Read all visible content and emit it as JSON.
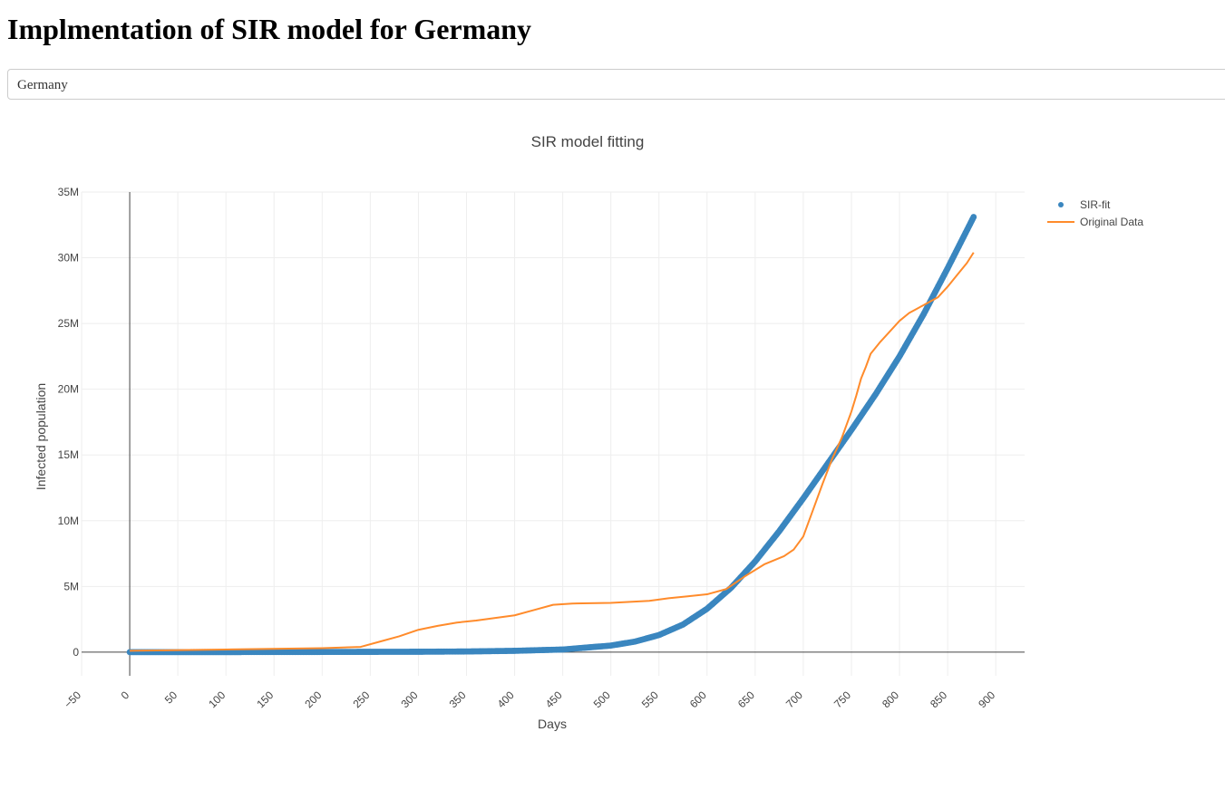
{
  "page": {
    "title": "Implmentation of SIR model for Germany"
  },
  "country_select": {
    "value": "Germany"
  },
  "chart_data": {
    "type": "line",
    "title": "SIR model fitting",
    "xlabel": "Days",
    "ylabel": "Infected population",
    "xlim": [
      -50,
      930
    ],
    "ylim": [
      -1800000,
      35000000
    ],
    "x_ticks": [
      -50,
      0,
      50,
      100,
      150,
      200,
      250,
      300,
      350,
      400,
      450,
      500,
      550,
      600,
      650,
      700,
      750,
      800,
      850,
      900
    ],
    "x_tick_labels": [
      "−50",
      "0",
      "50",
      "100",
      "150",
      "200",
      "250",
      "300",
      "350",
      "400",
      "450",
      "500",
      "550",
      "600",
      "650",
      "700",
      "750",
      "800",
      "850",
      "900"
    ],
    "y_ticks": [
      0,
      5000000,
      10000000,
      15000000,
      20000000,
      25000000,
      30000000,
      35000000
    ],
    "y_tick_labels": [
      "0",
      "5M",
      "10M",
      "15M",
      "20M",
      "25M",
      "30M",
      "35M"
    ],
    "grid": true,
    "legend_position": "top-right",
    "series": [
      {
        "name": "SIR-fit",
        "color": "#3a86bf",
        "mode": "markers",
        "x": [
          0,
          100,
          200,
          300,
          350,
          400,
          450,
          500,
          525,
          550,
          575,
          600,
          625,
          650,
          675,
          700,
          725,
          750,
          775,
          800,
          825,
          850,
          877
        ],
        "y": [
          0,
          5000,
          15000,
          30000,
          50000,
          100000,
          200000,
          500000,
          800000,
          1300000,
          2100000,
          3300000,
          4900000,
          6900000,
          9200000,
          11700000,
          14300000,
          16900000,
          19600000,
          22500000,
          25700000,
          29200000,
          33100000
        ]
      },
      {
        "name": "Original Data",
        "color": "#ff8b2b",
        "mode": "lines",
        "x": [
          0,
          100,
          200,
          240,
          260,
          280,
          300,
          320,
          340,
          360,
          380,
          400,
          420,
          440,
          460,
          500,
          540,
          560,
          580,
          600,
          620,
          640,
          660,
          680,
          690,
          700,
          710,
          720,
          730,
          740,
          750,
          755,
          760,
          765,
          770,
          780,
          790,
          800,
          810,
          820,
          830,
          840,
          850,
          860,
          870,
          877
        ],
        "y": [
          100000,
          200000,
          300000,
          400000,
          800000,
          1200000,
          1700000,
          2000000,
          2250000,
          2400000,
          2600000,
          2800000,
          3200000,
          3600000,
          3700000,
          3750000,
          3900000,
          4100000,
          4250000,
          4400000,
          4800000,
          5800000,
          6700000,
          7300000,
          7800000,
          8800000,
          10800000,
          12800000,
          14700000,
          16300000,
          18300000,
          19500000,
          20800000,
          21700000,
          22700000,
          23600000,
          24400000,
          25200000,
          25800000,
          26200000,
          26600000,
          27000000,
          27800000,
          28700000,
          29600000,
          30400000
        ]
      }
    ]
  }
}
